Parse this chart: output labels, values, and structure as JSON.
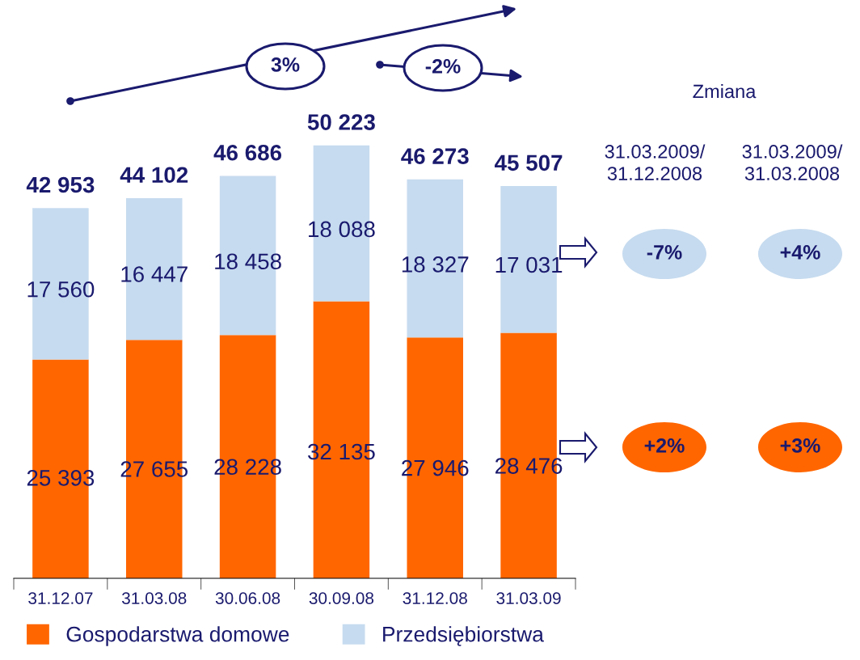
{
  "chart_data": {
    "type": "bar",
    "stacked": true,
    "categories": [
      "31.12.07",
      "31.03.08",
      "30.06.08",
      "30.09.08",
      "31.12.08",
      "31.03.09"
    ],
    "series": [
      {
        "name": "Gospodarstwa domowe",
        "color": "#ff6600",
        "values": [
          25393,
          27655,
          28228,
          32135,
          27946,
          28476
        ],
        "value_labels": [
          "25 393",
          "27 655",
          "28 228",
          "32 135",
          "27 946",
          "28 476"
        ]
      },
      {
        "name": "Przedsiębiorstwa",
        "color": "#c6dbef",
        "values": [
          17560,
          16447,
          18458,
          18088,
          18327,
          17031
        ],
        "value_labels": [
          "17 560",
          "16 447",
          "18 458",
          "18 088",
          "18 327",
          "17 031"
        ]
      }
    ],
    "totals": [
      "42 953",
      "44 102",
      "46 686",
      "50 223",
      "46 273",
      "45 507"
    ],
    "annotations": [
      "3%",
      "-2%",
      "Zmiana",
      "31.03.2009/\n31.12.2008",
      "31.03.2009/\n31.03.2008",
      "-7%",
      "+4%",
      "+2%",
      "+3%"
    ],
    "legend": "bottom",
    "grid": false
  }
}
